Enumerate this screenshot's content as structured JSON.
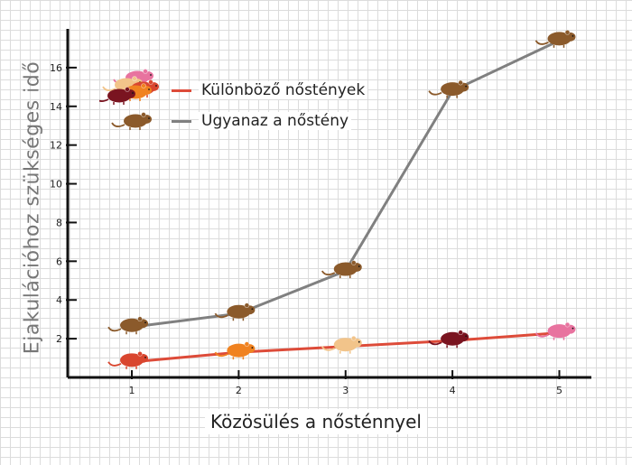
{
  "chart_data": {
    "type": "line",
    "title": "",
    "xlabel": "Közösülés a nősténnyel",
    "ylabel": "Ejakulációhoz szükséges idő",
    "x": [
      1,
      2,
      3,
      4,
      5
    ],
    "x_ticks": [
      "1",
      "2",
      "3",
      "4",
      "5"
    ],
    "y_ticks": [
      "2",
      "4",
      "6",
      "8",
      "10",
      "12",
      "14",
      "16"
    ],
    "ylim": [
      0,
      18
    ],
    "xlim": [
      0.4,
      5.3
    ],
    "grid": true,
    "legend_position": "top-left",
    "series": [
      {
        "name": "Különböző nőstények",
        "color": "#dd4b39",
        "values": [
          0.8,
          1.3,
          1.6,
          1.9,
          2.3
        ],
        "marker_colors": [
          "#d9462f",
          "#f08220",
          "#f2c48a",
          "#7a1420",
          "#e8739f"
        ]
      },
      {
        "name": "Ugyanaz a nőstény",
        "color": "#808080",
        "values": [
          2.6,
          3.3,
          5.5,
          14.8,
          17.4
        ],
        "marker_colors": [
          "#8b5a2b",
          "#8b5a2b",
          "#8b5a2b",
          "#8b5a2b",
          "#8b5a2b"
        ]
      }
    ]
  }
}
